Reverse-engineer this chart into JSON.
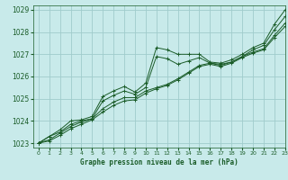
{
  "title": "Graphe pression niveau de la mer (hPa)",
  "bg_color": "#c8eaea",
  "grid_color": "#a0cccc",
  "line_color": "#1a5c28",
  "xlim": [
    -0.5,
    23
  ],
  "ylim": [
    1022.8,
    1029.2
  ],
  "xticks": [
    0,
    1,
    2,
    3,
    4,
    5,
    6,
    7,
    8,
    9,
    10,
    11,
    12,
    13,
    14,
    15,
    16,
    17,
    18,
    19,
    20,
    21,
    22,
    23
  ],
  "yticks": [
    1023,
    1024,
    1025,
    1026,
    1027,
    1028,
    1029
  ],
  "series": [
    [
      1023.0,
      1023.3,
      1023.6,
      1024.0,
      1024.05,
      1024.2,
      1025.1,
      1025.35,
      1025.55,
      1025.3,
      1025.7,
      1027.3,
      1027.2,
      1027.0,
      1027.0,
      1027.0,
      1026.65,
      1026.6,
      1026.75,
      1027.0,
      1027.3,
      1027.5,
      1028.35,
      1029.0
    ],
    [
      1023.0,
      1023.3,
      1023.5,
      1023.85,
      1024.0,
      1024.1,
      1024.9,
      1025.15,
      1025.35,
      1025.2,
      1025.5,
      1026.9,
      1026.8,
      1026.55,
      1026.7,
      1026.85,
      1026.6,
      1026.55,
      1026.65,
      1026.9,
      1027.2,
      1027.4,
      1028.1,
      1028.7
    ],
    [
      1023.0,
      1023.15,
      1023.45,
      1023.75,
      1023.95,
      1024.1,
      1024.55,
      1024.85,
      1025.05,
      1025.05,
      1025.35,
      1025.5,
      1025.65,
      1025.9,
      1026.2,
      1026.5,
      1026.6,
      1026.5,
      1026.65,
      1026.9,
      1027.1,
      1027.25,
      1027.85,
      1028.4
    ],
    [
      1023.0,
      1023.1,
      1023.35,
      1023.65,
      1023.85,
      1024.05,
      1024.4,
      1024.7,
      1024.9,
      1024.95,
      1025.25,
      1025.45,
      1025.6,
      1025.85,
      1026.15,
      1026.45,
      1026.55,
      1026.45,
      1026.6,
      1026.85,
      1027.05,
      1027.2,
      1027.75,
      1028.25
    ]
  ]
}
